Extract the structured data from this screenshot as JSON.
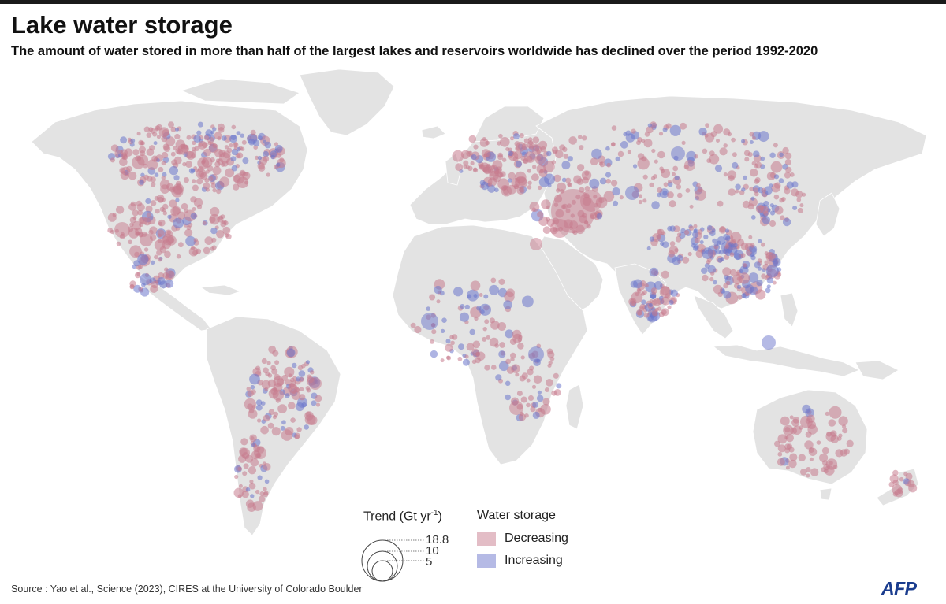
{
  "header": {
    "title": "Lake water storage",
    "subtitle": "The amount of water stored in more than half of the largest lakes and reservoirs worldwide has declined over the period 1992-2020"
  },
  "colors": {
    "decreasing": "#c77b8e",
    "increasing": "#6c76cc",
    "land": "#e3e3e3",
    "background": "#ffffff"
  },
  "legend": {
    "trend_title": "Trend (Gt yr",
    "trend_title_sup": "-1",
    "trend_title_end": ")",
    "size_values": [
      "18.8",
      "10",
      "5"
    ],
    "storage_title": "Water storage",
    "items": [
      {
        "label": "Decreasing",
        "color": "#c77b8e"
      },
      {
        "label": "Increasing",
        "color": "#6c76cc"
      }
    ]
  },
  "footer": {
    "source": "Source : Yao et al., Science (2023), CIRES at the University of Colorado Boulder",
    "logo": "AFP"
  },
  "map": {
    "seed_points": 1700
  }
}
